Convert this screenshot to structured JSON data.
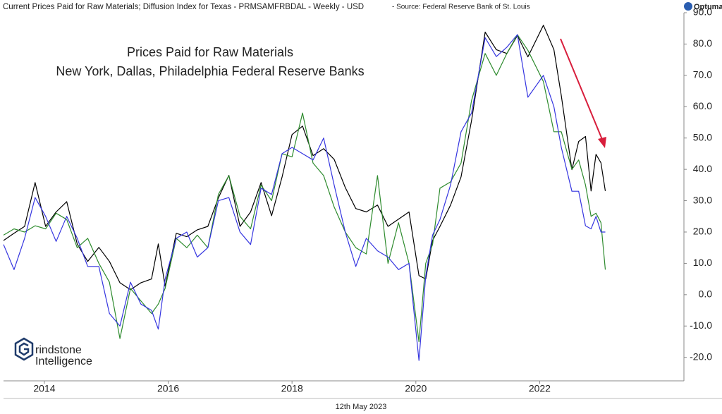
{
  "chart_data": {
    "type": "line",
    "title": "Current Prices Paid for Raw Materials; Diffusion Index for Texas - PRMSAMFRBDAL - Weekly - USD",
    "source": " - Source: Federal Reserve Bank of St. Louis",
    "brand": "Optuma",
    "annotation_lines": [
      "Prices Paid for Raw Materials",
      "New York, Dallas, Philadelphia Federal Reserve Banks"
    ],
    "logo_lines": [
      "rindstone",
      "Intelligence"
    ],
    "date_label": "12th May 2023",
    "x": [
      2013.34,
      2013.51,
      2013.68,
      2013.85,
      2014.02,
      2014.19,
      2014.36,
      2014.53,
      2014.7,
      2014.88,
      2015.05,
      2015.22,
      2015.39,
      2015.56,
      2015.73,
      2015.84,
      2015.95,
      2016.13,
      2016.3,
      2016.47,
      2016.64,
      2016.81,
      2016.98,
      2017.16,
      2017.33,
      2017.5,
      2017.67,
      2017.84,
      2018.0,
      2018.17,
      2018.34,
      2018.51,
      2018.68,
      2018.86,
      2019.03,
      2019.2,
      2019.38,
      2019.55,
      2019.72,
      2019.89,
      2020.05,
      2020.16,
      2020.27,
      2020.39,
      2020.56,
      2020.73,
      2020.9,
      2021.12,
      2021.3,
      2021.47,
      2021.64,
      2021.81,
      2022.06,
      2022.23,
      2022.35,
      2022.52,
      2022.63,
      2022.74,
      2022.83,
      2022.91,
      2022.99,
      2023.06
    ],
    "series": [
      {
        "color": "#000000",
        "values": [
          17.3,
          19.6,
          21.8,
          35.8,
          21.8,
          26.4,
          29.7,
          16.2,
          10.6,
          15.1,
          10.6,
          3.8,
          1.6,
          3.8,
          5.0,
          16.2,
          2.7,
          19.6,
          18.5,
          20.7,
          21.8,
          30.9,
          38.1,
          21.8,
          26.4,
          35.8,
          25.2,
          37.6,
          51.1,
          53.8,
          44.4,
          46.6,
          43.2,
          34.2,
          27.5,
          26.4,
          28.6,
          21.8,
          24.1,
          26.4,
          6.1,
          5.0,
          17.3,
          21.8,
          28.6,
          37.6,
          55.6,
          83.8,
          78.2,
          77.0,
          82.7,
          75.9,
          86.0,
          78.2,
          63.5,
          39.9,
          48.9,
          50.5,
          33.1,
          44.8,
          42.1,
          33.1
        ]
      },
      {
        "color": "#2e8b2e",
        "values": [
          19,
          21,
          20,
          22,
          21,
          26,
          24,
          15,
          18,
          10,
          4,
          -14,
          2,
          -2,
          -6,
          -3,
          2,
          18,
          15,
          19,
          15,
          32,
          38,
          25,
          21,
          35,
          30,
          45,
          44,
          58,
          42,
          38,
          28,
          20,
          15,
          13,
          38,
          10,
          23,
          10,
          -15,
          10,
          16,
          34,
          36,
          42,
          62,
          77,
          70,
          77,
          83,
          78,
          68,
          52,
          52,
          40,
          43,
          35,
          25,
          26,
          23,
          8
        ]
      },
      {
        "color": "#3535e0",
        "values": [
          16,
          8,
          18,
          31,
          25,
          17,
          25,
          18,
          9,
          9,
          -6,
          -10,
          4,
          -3,
          -5,
          -11,
          5,
          18,
          20,
          12,
          15,
          30,
          31,
          20,
          16,
          34,
          32,
          45,
          47,
          45,
          43,
          50,
          35,
          20,
          9,
          18,
          14,
          12,
          8,
          10,
          -21,
          6,
          19,
          24,
          35,
          52,
          58,
          82,
          76,
          79,
          83,
          63,
          70,
          60,
          47,
          33,
          33,
          22,
          21,
          25,
          20,
          20
        ]
      }
    ],
    "xlim": [
      2013.34,
      2024.33
    ],
    "xticks": [
      2014,
      2016,
      2018,
      2020,
      2022
    ],
    "ylim": [
      -27.5,
      90
    ],
    "yticks": [
      {
        "value": -20,
        "label": "-20.0"
      },
      {
        "value": -10,
        "label": "-10.0"
      },
      {
        "value": 0,
        "label": "0.0"
      },
      {
        "value": 10,
        "label": "10.0"
      },
      {
        "value": 20,
        "label": "20.0"
      },
      {
        "value": 30,
        "label": "30.0"
      },
      {
        "value": 40,
        "label": "40.0"
      },
      {
        "value": 50,
        "label": "50.0"
      },
      {
        "value": 60,
        "label": "60.0"
      },
      {
        "value": 70,
        "label": "70.0"
      },
      {
        "value": 80,
        "label": "80.0"
      },
      {
        "value": 90,
        "label": "90.0"
      }
    ],
    "grid": false
  }
}
